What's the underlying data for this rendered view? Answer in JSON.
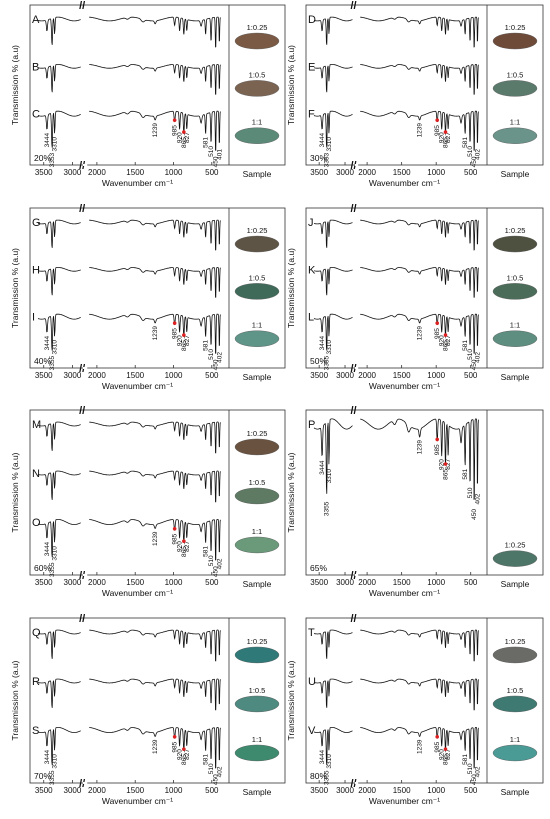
{
  "figure": {
    "panels": [
      {
        "id": "panel-20",
        "percent": "20%",
        "curves": [
          {
            "letter": "A",
            "ratio": "1:0.25",
            "color": "#7a5a44"
          },
          {
            "letter": "B",
            "ratio": "1:0.5",
            "color": "#7b6352"
          },
          {
            "letter": "C",
            "ratio": "1:1",
            "color": "#5c8a78"
          }
        ],
        "peak_labels": [
          "3444",
          "3353",
          "3310",
          "1239",
          "985",
          "920",
          "865",
          "827",
          "581",
          "510",
          "450",
          "401"
        ]
      },
      {
        "id": "panel-30",
        "percent": "30%",
        "curves": [
          {
            "letter": "D",
            "ratio": "1:0.25",
            "color": "#6e4a38"
          },
          {
            "letter": "E",
            "ratio": "1:0.5",
            "color": "#5a7a6c"
          },
          {
            "letter": "F",
            "ratio": "1:1",
            "color": "#6a938a"
          }
        ],
        "peak_labels": [
          "3444",
          "3353",
          "3310",
          "1239",
          "985",
          "920",
          "865",
          "827",
          "581",
          "510",
          "450",
          "402"
        ]
      },
      {
        "id": "panel-40",
        "percent": "40%",
        "curves": [
          {
            "letter": "G",
            "ratio": "1:0.25",
            "color": "#5e5446"
          },
          {
            "letter": "H",
            "ratio": "1:0.5",
            "color": "#3f6a5a"
          },
          {
            "letter": "I",
            "ratio": "1:1",
            "color": "#5f9488"
          }
        ],
        "peak_labels": [
          "3444",
          "3355",
          "3310",
          "1239",
          "985",
          "920",
          "865",
          "827",
          "581",
          "510",
          "450",
          "402"
        ]
      },
      {
        "id": "panel-50",
        "percent": "50%",
        "curves": [
          {
            "letter": "J",
            "ratio": "1:0.25",
            "color": "#4e5040"
          },
          {
            "letter": "K",
            "ratio": "1:0.5",
            "color": "#4a6c58"
          },
          {
            "letter": "L",
            "ratio": "1:1",
            "color": "#5e8e80"
          }
        ],
        "peak_labels": [
          "3444",
          "3355",
          "3310",
          "1239",
          "985",
          "920",
          "865",
          "827",
          "581",
          "510",
          "450",
          "402"
        ]
      },
      {
        "id": "panel-60",
        "percent": "60%",
        "curves": [
          {
            "letter": "M",
            "ratio": "1:0.25",
            "color": "#6a5240"
          },
          {
            "letter": "N",
            "ratio": "1:0.5",
            "color": "#5e7a62"
          },
          {
            "letter": "O",
            "ratio": "1:1",
            "color": "#6a9a7a"
          }
        ],
        "peak_labels": [
          "3444",
          "3355",
          "3310",
          "1239",
          "985",
          "920",
          "865",
          "827",
          "581",
          "510",
          "450",
          "402"
        ]
      },
      {
        "id": "panel-65",
        "percent": "65%",
        "curves": [
          {
            "letter": "P",
            "ratio": "1:0.25",
            "color": "#4e7668"
          }
        ],
        "peak_labels": [
          "3444",
          "3355",
          "3310",
          "1239",
          "985",
          "920",
          "865",
          "827",
          "581",
          "510",
          "450",
          "402"
        ]
      },
      {
        "id": "panel-70",
        "percent": "70%",
        "curves": [
          {
            "letter": "Q",
            "ratio": "1:0.25",
            "color": "#2f7a78"
          },
          {
            "letter": "R",
            "ratio": "1:0.5",
            "color": "#4e8a80"
          },
          {
            "letter": "S",
            "ratio": "1:1",
            "color": "#3d8a6e"
          }
        ],
        "peak_labels": [
          "3444",
          "3355",
          "3310",
          "1239",
          "985",
          "920",
          "865",
          "827",
          "581",
          "510",
          "450",
          "402"
        ]
      },
      {
        "id": "panel-80",
        "percent": "80%",
        "curves": [
          {
            "letter": "T",
            "ratio": "1:0.25",
            "color": "#6a6a66"
          },
          {
            "letter": "U",
            "ratio": "1:0.5",
            "color": "#3e7a72"
          },
          {
            "letter": "V",
            "ratio": "1:1",
            "color": "#4a9a96"
          }
        ],
        "peak_labels": [
          "3444",
          "3355",
          "3310",
          "1239",
          "985",
          "920",
          "865",
          "827",
          "581",
          "510",
          "450",
          "402"
        ]
      }
    ],
    "ylabel": "Transmission % (a.u)",
    "xlabel": "Wavenumber cm⁻¹",
    "sample_label": "Sample",
    "axis_break": "//",
    "marker_color": "#e02020"
  },
  "chart_data": {
    "type": "line",
    "xlabel": "Wavenumber cm⁻¹",
    "ylabel": "Transmission % (a.u)",
    "x_ticks": [
      "3500",
      "3000",
      "2000",
      "1500",
      "1000",
      "500"
    ],
    "xlim_segments": [
      [
        3600,
        2850
      ],
      [
        2100,
        380
      ]
    ],
    "x_axis_reversed": true,
    "x_axis_break": true,
    "grid": false,
    "y_units": "arbitrary (stacked, offset traces)",
    "peak_positions": [
      3444,
      3355,
      3310,
      1239,
      985,
      920,
      865,
      827,
      581,
      510,
      450,
      402
    ],
    "series_by_panel": {
      "20%": [
        "A",
        "B",
        "C"
      ],
      "30%": [
        "D",
        "E",
        "F"
      ],
      "40%": [
        "G",
        "H",
        "I"
      ],
      "50%": [
        "J",
        "K",
        "L"
      ],
      "60%": [
        "M",
        "N",
        "O"
      ],
      "65%": [
        "P"
      ],
      "70%": [
        "Q",
        "R",
        "S"
      ],
      "80%": [
        "T",
        "U",
        "V"
      ]
    },
    "sample_ratios": [
      "1:0.25",
      "1:0.5",
      "1:1"
    ]
  }
}
